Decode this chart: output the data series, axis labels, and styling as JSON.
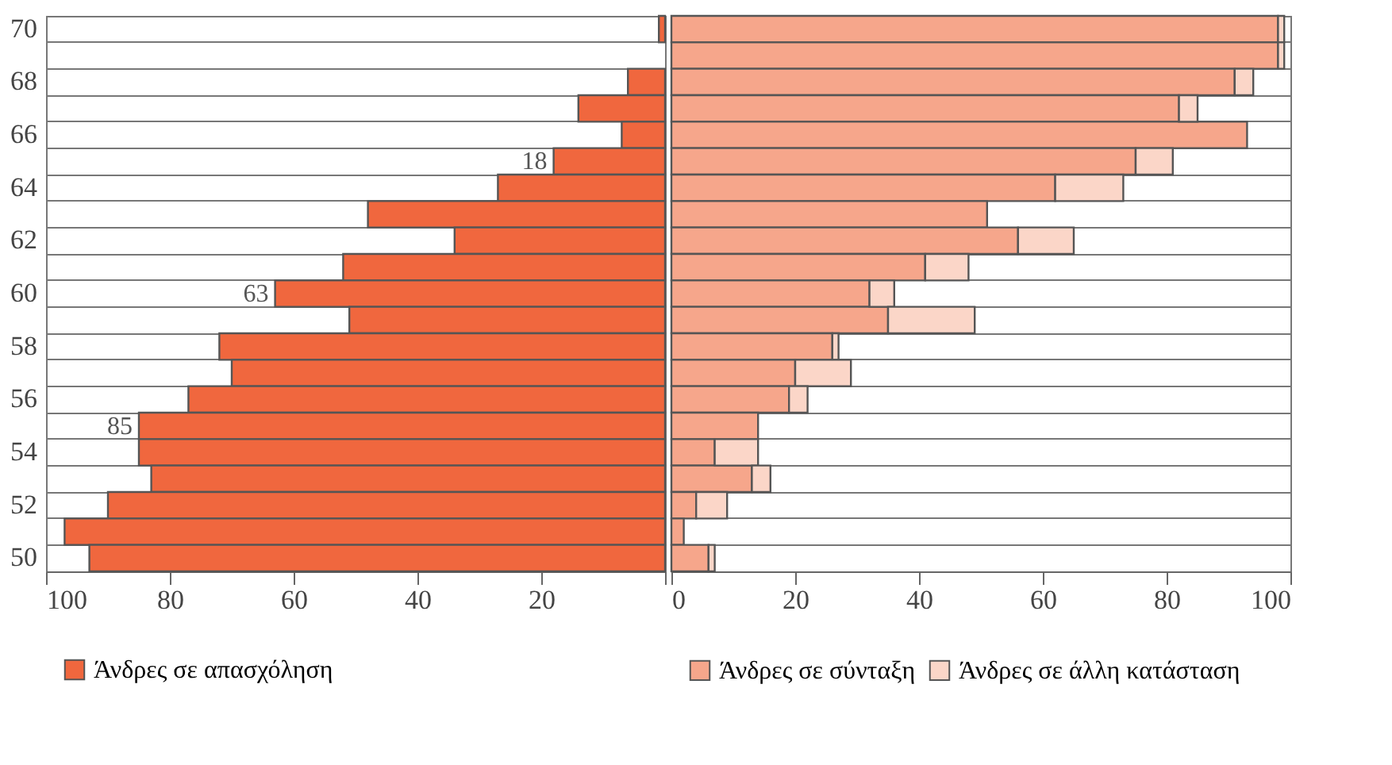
{
  "chart_data": [
    {
      "type": "bar",
      "orientation": "horizontal",
      "categories": [
        "70",
        null,
        "68",
        null,
        "66",
        null,
        "64",
        null,
        "62",
        null,
        "60",
        null,
        "58",
        null,
        "56",
        null,
        "54",
        null,
        "52",
        null,
        "50"
      ],
      "xlim": [
        100,
        0
      ],
      "xticks": [
        100,
        80,
        60,
        40,
        20,
        {
          "value": 0,
          "label": null
        }
      ],
      "grid": "y",
      "legend": "bottom",
      "series": [
        {
          "name": "Άνδρες σε απασχόληση",
          "color": "#f0673e",
          "values": [
            1,
            0,
            6,
            14,
            7,
            18,
            27,
            48,
            34,
            52,
            63,
            51,
            72,
            70,
            77,
            85,
            85,
            83,
            90,
            97,
            93
          ],
          "value_labels": [
            null,
            null,
            null,
            null,
            null,
            "18",
            null,
            null,
            null,
            null,
            "63",
            null,
            null,
            null,
            null,
            "85",
            null,
            null,
            null,
            null,
            null
          ]
        }
      ]
    },
    {
      "type": "bar",
      "orientation": "horizontal",
      "stacked": true,
      "tick_labels": "x",
      "categories": [
        "70",
        null,
        "68",
        null,
        "66",
        null,
        "64",
        null,
        "62",
        null,
        "60",
        null,
        "58",
        null,
        "56",
        null,
        "54",
        null,
        "52",
        null,
        "50"
      ],
      "xlim": [
        0,
        100
      ],
      "xticks": [
        0,
        20,
        40,
        60,
        80,
        100
      ],
      "grid": "y",
      "legend": "bottom",
      "series": [
        {
          "name": "Άνδρες σε σύνταξη",
          "color": "#f6a68b",
          "values": [
            98,
            98,
            91,
            82,
            93,
            75,
            62,
            51,
            56,
            41,
            32,
            35,
            26,
            20,
            19,
            14,
            7,
            13,
            4,
            2,
            6
          ]
        },
        {
          "name": "Άνδρες σε άλλη κατάσταση",
          "color": "#fbd6c8",
          "values": [
            1,
            1,
            3,
            3,
            0,
            6,
            11,
            0,
            9,
            7,
            4,
            14,
            1,
            9,
            3,
            0,
            7,
            3,
            5,
            0,
            1
          ]
        }
      ]
    }
  ]
}
